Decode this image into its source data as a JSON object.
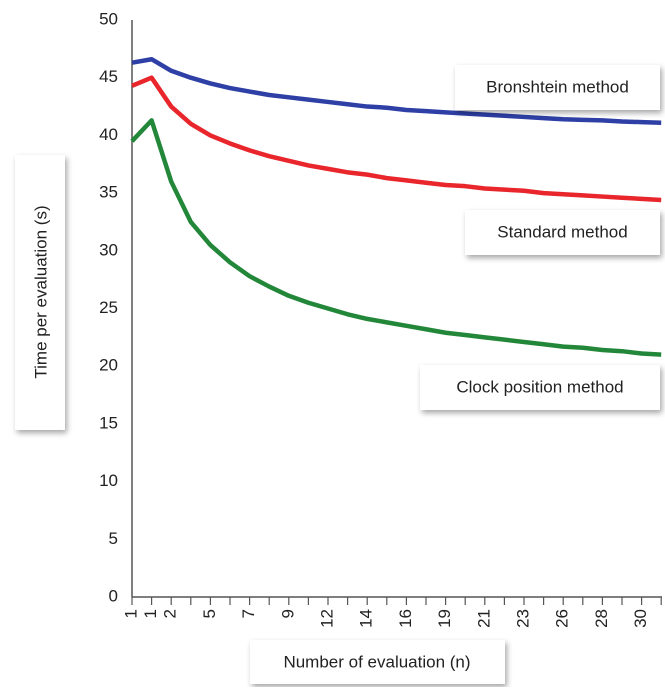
{
  "chart_data": {
    "type": "line",
    "x_label": "Number of evaluation (n)",
    "y_label": "Time per evaluation (s)",
    "categories": [
      "1",
      "1",
      "2",
      null,
      "5",
      null,
      "7",
      null,
      "9",
      null,
      "12",
      null,
      "14",
      null,
      "16",
      null,
      "19",
      null,
      "21",
      null,
      "23",
      null,
      "26",
      null,
      "28",
      null,
      "30",
      null
    ],
    "series": [
      {
        "name": "Bronshtein method",
        "color": "#2e3fa6",
        "values": [
          46.3,
          46.6,
          45.6,
          45.0,
          44.5,
          44.1,
          43.8,
          43.5,
          43.3,
          43.1,
          42.9,
          42.7,
          42.5,
          42.4,
          42.2,
          42.1,
          42.0,
          41.9,
          41.8,
          41.7,
          41.6,
          41.5,
          41.4,
          41.35,
          41.3,
          41.2,
          41.15,
          41.1
        ]
      },
      {
        "name": "Standard method",
        "color": "#e8262b",
        "values": [
          44.3,
          45.0,
          42.5,
          41.0,
          40.0,
          39.3,
          38.7,
          38.2,
          37.8,
          37.4,
          37.1,
          36.8,
          36.6,
          36.3,
          36.1,
          35.9,
          35.7,
          35.6,
          35.4,
          35.3,
          35.2,
          35.0,
          34.9,
          34.8,
          34.7,
          34.6,
          34.5,
          34.4
        ]
      },
      {
        "name": "Clock position method",
        "color": "#23873a",
        "values": [
          39.5,
          41.3,
          36.0,
          32.5,
          30.5,
          29.0,
          27.8,
          26.9,
          26.1,
          25.5,
          25.0,
          24.5,
          24.1,
          23.8,
          23.5,
          23.2,
          22.9,
          22.7,
          22.5,
          22.3,
          22.1,
          21.9,
          21.7,
          21.6,
          21.4,
          21.3,
          21.1,
          21.0
        ]
      }
    ],
    "ylim": [
      0,
      50
    ],
    "yticks": [
      0,
      5,
      10,
      15,
      20,
      25,
      30,
      35,
      40,
      45,
      50
    ]
  }
}
